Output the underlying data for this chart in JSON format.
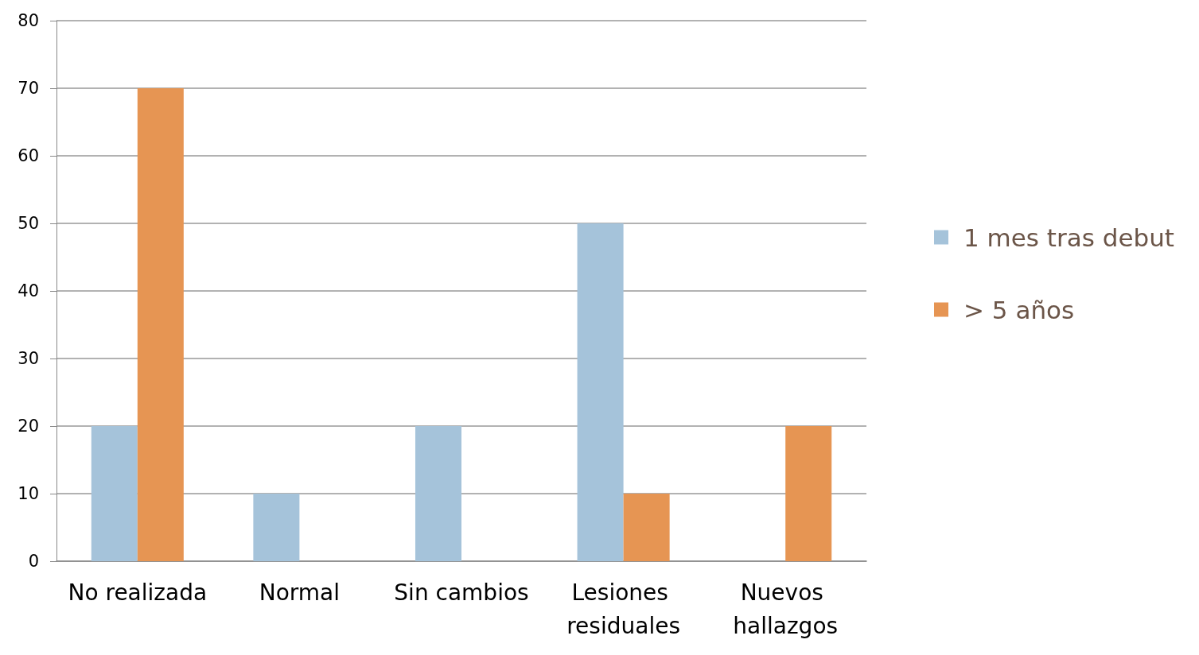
{
  "chart_data": {
    "type": "bar",
    "categories": [
      "No realizada",
      "Normal",
      "Sin cambios",
      "Lesiones residuales",
      "Nuevos hallazgos"
    ],
    "series": [
      {
        "name": "1 mes tras debut",
        "color": "#a5c3da",
        "values": [
          20,
          10,
          20,
          50,
          0
        ]
      },
      {
        "name": "> 5 años",
        "color": "#e69553",
        "values": [
          70,
          0,
          0,
          10,
          20
        ]
      }
    ],
    "ylim": [
      0,
      80
    ],
    "yticks": [
      0,
      10,
      20,
      30,
      40,
      50,
      60,
      70,
      80
    ],
    "grid": "y",
    "legend": "right"
  }
}
